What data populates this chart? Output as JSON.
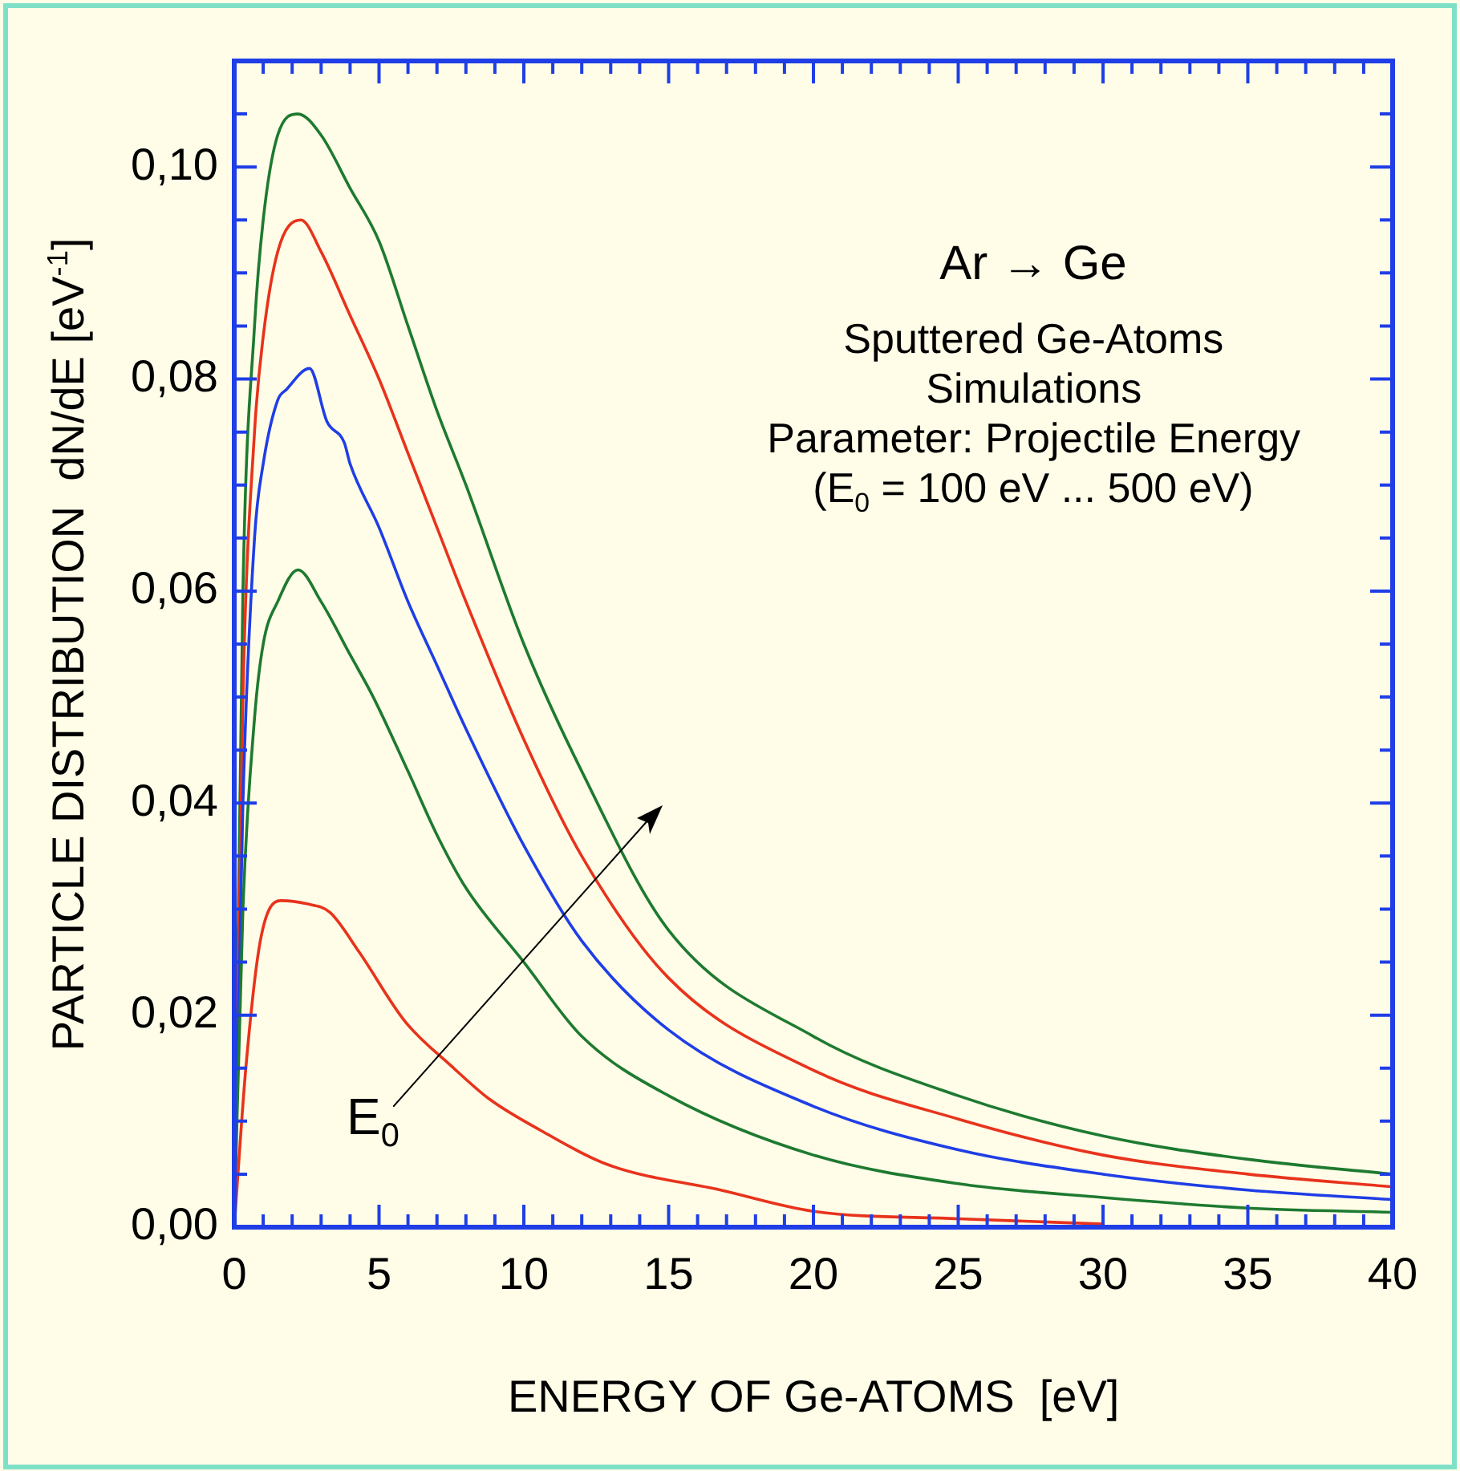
{
  "chart_data": {
    "type": "line",
    "xlabel": "ENERGY OF Ge-ATOMS  [eV]",
    "ylabel": "PARTICLE DISTRIBUTION  dN/dE [eV$^{-1}$]",
    "annotations": [
      "Ar → Ge",
      "Sputtered Ge-Atoms",
      "Simulations",
      "Parameter: Projectile Energy",
      "(E$_{0}$ = 100 eV ... 500 eV)",
      "E$_{0}$"
    ],
    "xlim": [
      0,
      40
    ],
    "xticks": [
      0,
      {
        "value": 1,
        "label": null
      },
      {
        "value": 2,
        "label": null
      },
      {
        "value": 3,
        "label": null
      },
      {
        "value": 4,
        "label": null
      },
      5,
      {
        "value": 6,
        "label": null
      },
      {
        "value": 7,
        "label": null
      },
      {
        "value": 8,
        "label": null
      },
      {
        "value": 9,
        "label": null
      },
      10,
      {
        "value": 11,
        "label": null
      },
      {
        "value": 12,
        "label": null
      },
      {
        "value": 13,
        "label": null
      },
      {
        "value": 14,
        "label": null
      },
      15,
      {
        "value": 16,
        "label": null
      },
      {
        "value": 17,
        "label": null
      },
      {
        "value": 18,
        "label": null
      },
      {
        "value": 19,
        "label": null
      },
      20,
      {
        "value": 21,
        "label": null
      },
      {
        "value": 22,
        "label": null
      },
      {
        "value": 23,
        "label": null
      },
      {
        "value": 24,
        "label": null
      },
      25,
      {
        "value": 26,
        "label": null
      },
      {
        "value": 27,
        "label": null
      },
      {
        "value": 28,
        "label": null
      },
      {
        "value": 29,
        "label": null
      },
      30,
      {
        "value": 31,
        "label": null
      },
      {
        "value": 32,
        "label": null
      },
      {
        "value": 33,
        "label": null
      },
      {
        "value": 34,
        "label": null
      },
      35,
      {
        "value": 36,
        "label": null
      },
      {
        "value": 37,
        "label": null
      },
      {
        "value": 38,
        "label": null
      },
      {
        "value": 39,
        "label": null
      },
      40
    ],
    "ylim": [
      0,
      0.11
    ],
    "yticks": [
      {
        "value": 0,
        "label": "0,00"
      },
      {
        "value": 0.005,
        "label": null
      },
      {
        "value": 0.01,
        "label": null
      },
      {
        "value": 0.015,
        "label": null
      },
      {
        "value": 0.02,
        "label": "0,02"
      },
      {
        "value": 0.025,
        "label": null
      },
      {
        "value": 0.03,
        "label": null
      },
      {
        "value": 0.035,
        "label": null
      },
      {
        "value": 0.04,
        "label": "0,04"
      },
      {
        "value": 0.045,
        "label": null
      },
      {
        "value": 0.05,
        "label": null
      },
      {
        "value": 0.055,
        "label": null
      },
      {
        "value": 0.06,
        "label": "0,06"
      },
      {
        "value": 0.065,
        "label": null
      },
      {
        "value": 0.07,
        "label": null
      },
      {
        "value": 0.075,
        "label": null
      },
      {
        "value": 0.08,
        "label": "0,08"
      },
      {
        "value": 0.085,
        "label": null
      },
      {
        "value": 0.09,
        "label": null
      },
      {
        "value": 0.095,
        "label": null
      },
      {
        "value": 0.1,
        "label": "0,10"
      },
      {
        "value": 0.105,
        "label": null
      }
    ],
    "grid": false,
    "legend": false,
    "marker": "none",
    "line_style": "solid",
    "series": [
      {
        "color": "#e8331c",
        "x": [
          0,
          0.4,
          0.9,
          1.6,
          2.5,
          3.3,
          4.3,
          5.9,
          7.5,
          8.8,
          10.6,
          12.9,
          16.8,
          20,
          25,
          30
        ],
        "values": [
          0,
          0.015,
          0.027,
          0.0308,
          0.0305,
          0.0297,
          0.026,
          0.0194,
          0.0152,
          0.0121,
          0.0091,
          0.0059,
          0.0035,
          0.0015,
          0.0008,
          0.0003
        ]
      },
      {
        "color": "#1e7a30",
        "x": [
          0,
          0.3,
          0.7,
          1,
          1.5,
          2.2,
          3,
          4,
          4.8,
          6,
          7,
          8,
          10,
          12,
          15,
          20,
          25,
          30,
          35,
          40
        ],
        "values": [
          0,
          0.03,
          0.048,
          0.055,
          0.059,
          0.062,
          0.059,
          0.054,
          0.05,
          0.043,
          0.037,
          0.032,
          0.025,
          0.018,
          0.0124,
          0.0068,
          0.0041,
          0.0028,
          0.0018,
          0.0014
        ]
      },
      {
        "color": "#1f3ee6",
        "x": [
          0,
          0.3,
          0.7,
          1,
          1.5,
          1.8,
          2.6,
          3.2,
          3.8,
          4,
          5,
          6,
          7,
          8,
          10,
          12,
          15,
          20,
          25,
          30,
          35,
          40
        ],
        "values": [
          0,
          0.04,
          0.065,
          0.072,
          0.078,
          0.079,
          0.081,
          0.076,
          0.074,
          0.072,
          0.066,
          0.059,
          0.053,
          0.047,
          0.036,
          0.027,
          0.0186,
          0.0114,
          0.0073,
          0.005,
          0.0035,
          0.0026
        ]
      },
      {
        "color": "#e8331c",
        "x": [
          0,
          0.3,
          0.7,
          1,
          1.5,
          2.3,
          3,
          4,
          5,
          6,
          7,
          8,
          10,
          12,
          15,
          20,
          25,
          30,
          35,
          40
        ],
        "values": [
          0,
          0.05,
          0.075,
          0.084,
          0.092,
          0.095,
          0.092,
          0.086,
          0.08,
          0.073,
          0.066,
          0.059,
          0.046,
          0.035,
          0.0235,
          0.0148,
          0.0102,
          0.0068,
          0.005,
          0.0038
        ]
      },
      {
        "color": "#1e7a30",
        "x": [
          0,
          0.3,
          0.7,
          1,
          1.5,
          2.2,
          3,
          4,
          5,
          6,
          7,
          8,
          10,
          12,
          15,
          20,
          25,
          30,
          35,
          40
        ],
        "values": [
          0,
          0.06,
          0.085,
          0.095,
          0.103,
          0.105,
          0.103,
          0.098,
          0.093,
          0.085,
          0.077,
          0.07,
          0.055,
          0.043,
          0.028,
          0.018,
          0.0124,
          0.0086,
          0.0064,
          0.005
        ]
      }
    ]
  }
}
